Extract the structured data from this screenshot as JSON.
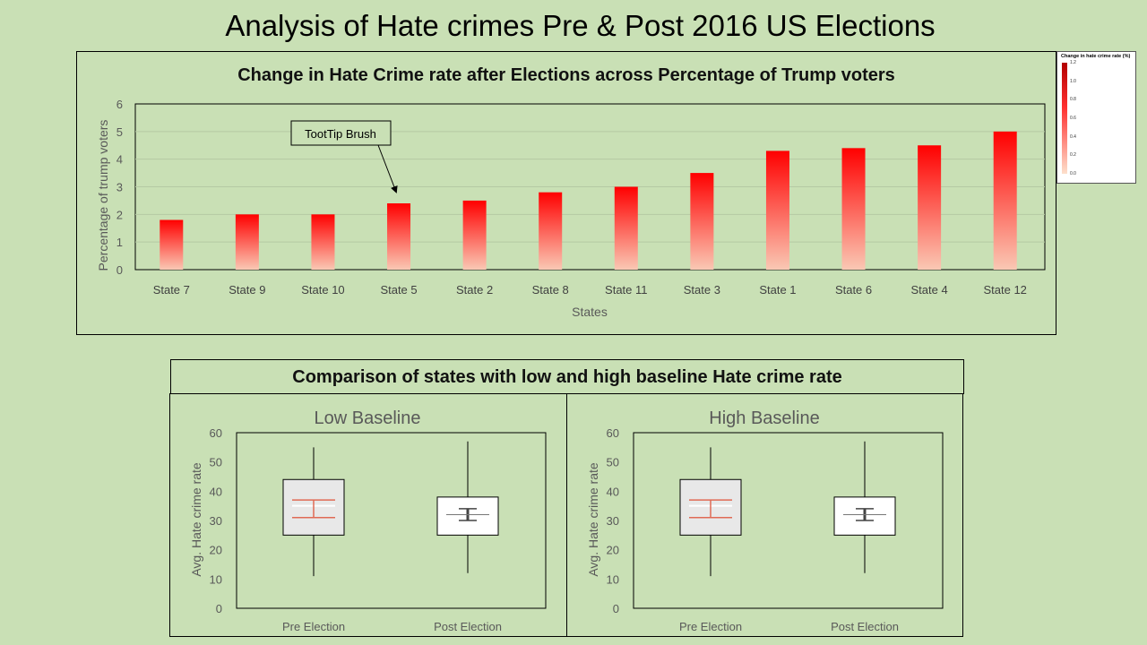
{
  "page": {
    "title": "Analysis of Hate crimes Pre & Post 2016 US Elections"
  },
  "top_chart": {
    "title": "Change in Hate Crime rate after Elections across Percentage of Trump voters",
    "annotation": "TootTip Brush"
  },
  "legend": {
    "title": "Change in hate crime rate (%)",
    "ticks": [
      "1.2",
      "1.0",
      "0.8",
      "0.6",
      "0.4",
      "0.2",
      "0.0"
    ],
    "color_high": "#b30000",
    "color_low": "#fde0cc"
  },
  "bottom_section": {
    "title": "Comparison of states with low and high baseline Hate crime rate"
  },
  "colors": {
    "background": "#c9e0b5",
    "bar_top": "#ff0000",
    "bar_bottom": "#fac8b4",
    "median_line": "#e06a55"
  },
  "chart_data": [
    {
      "type": "bar",
      "title": "Change in Hate Crime rate after Elections across Percentage of Trump voters",
      "xlabel": "States",
      "ylabel": "Percentage of trump voters",
      "ylim": [
        0,
        6
      ],
      "yticks": [
        "0",
        "1",
        "2",
        "3",
        "4",
        "5",
        "6"
      ],
      "grid": true,
      "categories": [
        "State 7",
        "State 9",
        "State 10",
        "State 5",
        "State 2",
        "State 8",
        "State 11",
        "State 3",
        "State 1",
        "State 6",
        "State 4",
        "State 12"
      ],
      "values": [
        1.8,
        2.0,
        2.0,
        2.4,
        2.5,
        2.8,
        3.0,
        3.5,
        4.3,
        4.4,
        4.5,
        5.0
      ]
    },
    {
      "type": "box",
      "title": "Low Baseline",
      "ylabel": "Avg. Hate crime rate",
      "ylim": [
        0,
        60
      ],
      "yticks": [
        "0",
        "10",
        "20",
        "30",
        "40",
        "50",
        "60"
      ],
      "categories": [
        "Pre Election",
        "Post Election"
      ],
      "boxes": [
        {
          "min": 11,
          "q1": 25,
          "median": 35,
          "q3": 44,
          "max": 55,
          "err_low": 31,
          "err_high": 37,
          "fill": "#e8e8e8",
          "err_color": "#e06a55"
        },
        {
          "min": 12,
          "q1": 25,
          "median": 32,
          "q3": 38,
          "max": 57,
          "err_low": 30,
          "err_high": 34,
          "fill": "#ffffff",
          "err_color": "#444444"
        }
      ]
    },
    {
      "type": "box",
      "title": "High Baseline",
      "ylabel": "Avg. Hate crime rate",
      "ylim": [
        0,
        60
      ],
      "yticks": [
        "0",
        "10",
        "20",
        "30",
        "40",
        "50",
        "60"
      ],
      "categories": [
        "Pre Election",
        "Post Election"
      ],
      "boxes": [
        {
          "min": 11,
          "q1": 25,
          "median": 35,
          "q3": 44,
          "max": 55,
          "err_low": 31,
          "err_high": 37,
          "fill": "#e8e8e8",
          "err_color": "#e06a55"
        },
        {
          "min": 12,
          "q1": 25,
          "median": 32,
          "q3": 38,
          "max": 57,
          "err_low": 30,
          "err_high": 34,
          "fill": "#ffffff",
          "err_color": "#444444"
        }
      ]
    }
  ]
}
